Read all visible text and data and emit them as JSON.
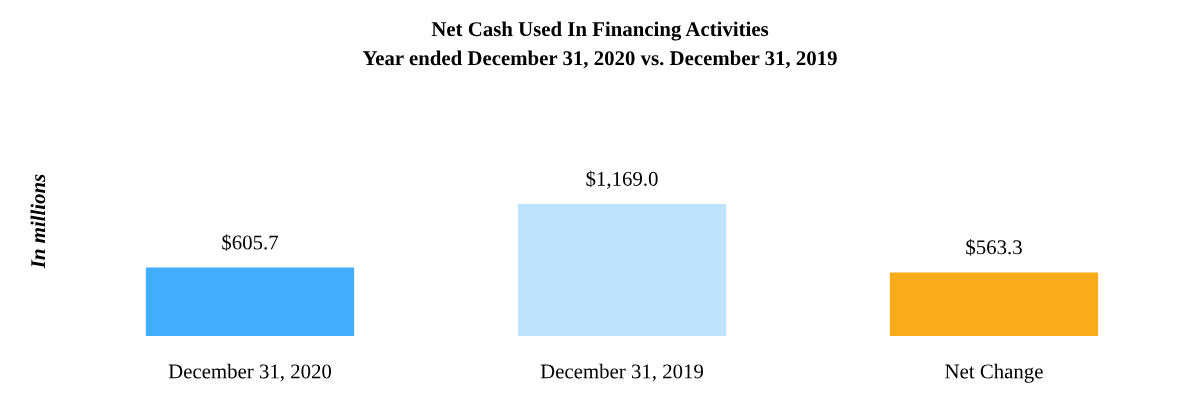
{
  "chart_data": {
    "type": "bar",
    "title": "Net Cash Used In Financing Activities",
    "subtitle": "Year ended December 31, 2020 vs. December 31, 2019",
    "ylabel": "In millions",
    "categories": [
      "December 31, 2020",
      "December 31, 2019",
      "Net Change"
    ],
    "values": [
      605.7,
      1169.0,
      563.3
    ],
    "colors": [
      "#42adfc",
      "#bee3fd",
      "#f9ab19"
    ],
    "value_labels": [
      "$605.7",
      "$1,169.0",
      "$563.3"
    ],
    "tick_labels": "x",
    "grid": false,
    "legend": false
  }
}
